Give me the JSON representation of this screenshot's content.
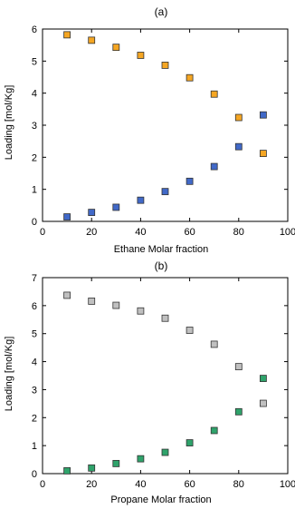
{
  "chart_data": [
    {
      "type": "scatter",
      "title": "(a)",
      "xlabel": "Ethane Molar fraction",
      "ylabel": "Loading [mol/Kg]",
      "xlim": [
        0,
        100
      ],
      "ylim": [
        0,
        6
      ],
      "xticks": [
        "0",
        "20",
        "40",
        "60",
        "80",
        "100"
      ],
      "yticks": [
        "0",
        "1",
        "2",
        "3",
        "4",
        "5",
        "6"
      ],
      "grid": false,
      "series": [
        {
          "color": "#F5A623",
          "x": [
            10,
            20,
            30,
            40,
            50,
            60,
            70,
            80,
            90
          ],
          "y": [
            5.82,
            5.65,
            5.43,
            5.18,
            4.87,
            4.48,
            3.97,
            3.24,
            2.12
          ]
        },
        {
          "color": "#4169C8",
          "x": [
            10,
            20,
            30,
            40,
            50,
            60,
            70,
            80,
            90
          ],
          "y": [
            0.14,
            0.28,
            0.44,
            0.66,
            0.93,
            1.25,
            1.71,
            2.33,
            3.32
          ]
        }
      ]
    },
    {
      "type": "scatter",
      "title": "(b)",
      "xlabel": "Propane Molar fraction",
      "ylabel": "Loading [mol/Kg]",
      "xlim": [
        0,
        100
      ],
      "ylim": [
        0,
        7
      ],
      "xticks": [
        "0",
        "20",
        "40",
        "60",
        "80",
        "100"
      ],
      "yticks": [
        "0",
        "1",
        "2",
        "3",
        "4",
        "5",
        "6",
        "7"
      ],
      "grid": false,
      "series": [
        {
          "color": "#C0C0C0",
          "x": [
            10,
            20,
            30,
            40,
            50,
            60,
            70,
            80,
            90
          ],
          "y": [
            6.37,
            6.16,
            6.01,
            5.81,
            5.55,
            5.12,
            4.62,
            3.82,
            2.51
          ]
        },
        {
          "color": "#2FA36B",
          "x": [
            10,
            20,
            30,
            40,
            50,
            60,
            70,
            80,
            90
          ],
          "y": [
            0.1,
            0.2,
            0.36,
            0.53,
            0.76,
            1.1,
            1.54,
            2.21,
            3.4
          ]
        }
      ]
    }
  ]
}
